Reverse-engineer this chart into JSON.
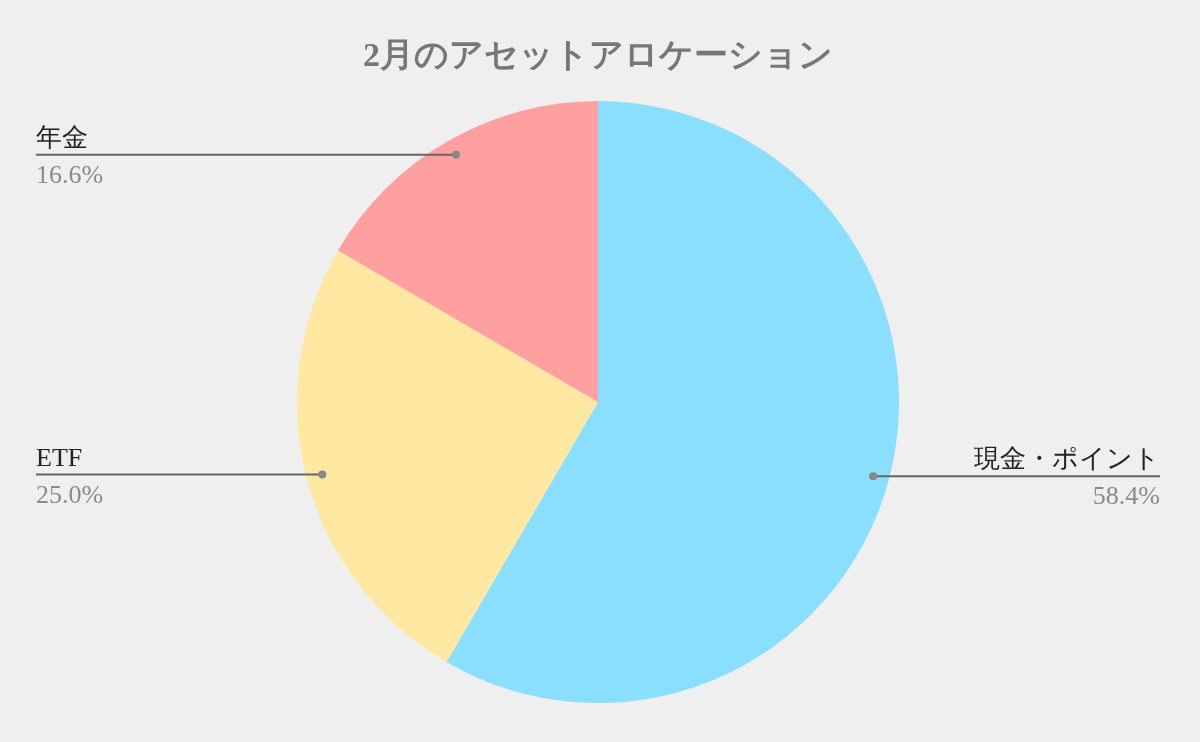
{
  "chart_data": {
    "type": "pie",
    "title": "2月のアセットアロケーション",
    "categories": [
      "現金・ポイント",
      "ETF",
      "年金"
    ],
    "values": [
      58.4,
      25.0,
      16.6
    ],
    "colors": [
      "#8adfff",
      "#ffe8a2",
      "#ffa0a0"
    ],
    "value_labels": [
      "58.4%",
      "25.0%",
      "16.6%"
    ]
  }
}
